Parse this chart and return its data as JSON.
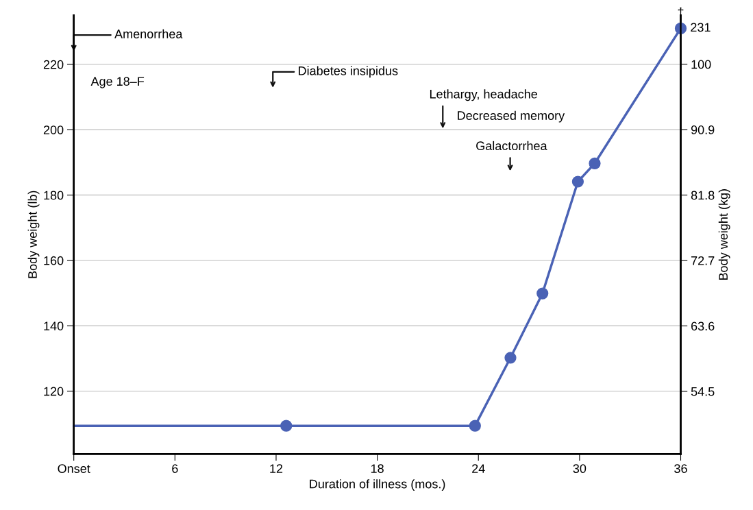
{
  "chart_data": {
    "type": "line",
    "xlabel": "Duration of illness (mos.)",
    "ylabel": "Body weight (lb)",
    "y2label": "Body weight (kg)",
    "xlim": [
      0,
      36
    ],
    "xticks": [
      {
        "value": 0,
        "label": "Onset"
      },
      6,
      12,
      18,
      24,
      30,
      36
    ],
    "ylim": [
      100.8,
      235
    ],
    "yticks": [
      120,
      140,
      160,
      180,
      200,
      220
    ],
    "y2lim": [
      45.8,
      106.8
    ],
    "y2ticks": [
      {
        "value": 54.5,
        "label": "54.5"
      },
      {
        "value": 63.6,
        "label": "63.6"
      },
      {
        "value": 72.7,
        "label": "72.7"
      },
      {
        "value": 81.8,
        "label": "81.8"
      },
      {
        "value": 90.9,
        "label": "90.9"
      },
      {
        "value": 100,
        "label": "100"
      }
    ],
    "grid": "y",
    "line_style": "solid",
    "series": [
      {
        "marker": "none",
        "color": "#4a62b5",
        "x": [
          0,
          12.6,
          23.8,
          25.9,
          27.8,
          29.9,
          30.9,
          36
        ],
        "values": [
          109.4,
          109.4,
          109.4,
          130.2,
          149.9,
          184.1,
          189.7,
          231
        ]
      },
      {
        "type": "scatter",
        "marker": "circle",
        "color": "#4a62b5",
        "x": [
          12.6,
          23.8,
          25.9,
          27.8,
          29.9,
          30.9,
          36
        ],
        "values": [
          109.4,
          109.4,
          130.2,
          149.9,
          184.1,
          189.7,
          231
        ],
        "value_labels": [
          null,
          null,
          null,
          null,
          null,
          null,
          "231"
        ]
      }
    ],
    "annotations": [
      "Age 18–F",
      "Amenorrhea",
      "Diabetes insipidus",
      "Lethargy, headache",
      "Decreased memory",
      "Galactorrhea",
      {
        "text": "†",
        "x": 36,
        "y": 231
      }
    ]
  }
}
